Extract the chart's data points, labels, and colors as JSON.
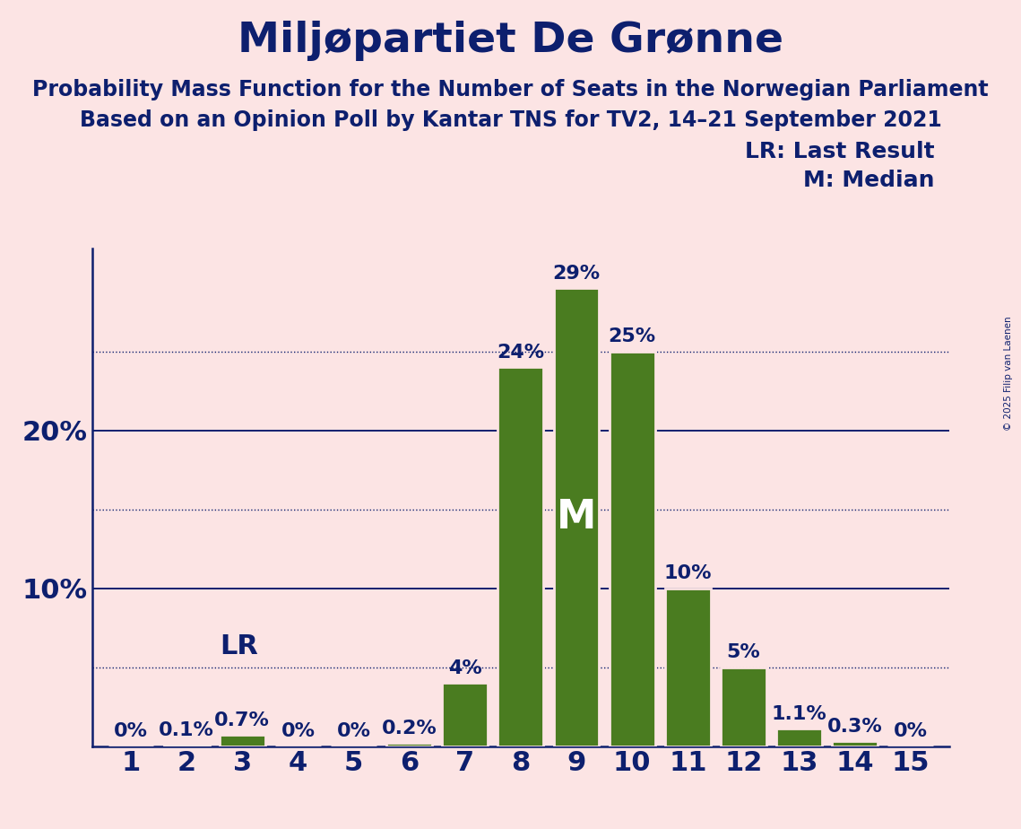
{
  "title": "Miljøpartiet De Grønne",
  "subtitle1": "Probability Mass Function for the Number of Seats in the Norwegian Parliament",
  "subtitle2": "Based on an Opinion Poll by Kantar TNS for TV2, 14–21 September 2021",
  "copyright": "© 2025 Filip van Laenen",
  "seats": [
    1,
    2,
    3,
    4,
    5,
    6,
    7,
    8,
    9,
    10,
    11,
    12,
    13,
    14,
    15
  ],
  "probabilities": [
    0.0,
    0.1,
    0.7,
    0.0,
    0.0,
    0.2,
    4.0,
    24.0,
    29.0,
    25.0,
    10.0,
    5.0,
    1.1,
    0.3,
    0.0
  ],
  "bar_color": "#4a7c20",
  "bar_edge_color": "#fce4e4",
  "background_color": "#fce4e4",
  "text_color": "#0d1f6e",
  "title_fontsize": 34,
  "subtitle_fontsize": 17,
  "tick_fontsize": 22,
  "annotation_fontsize": 16,
  "legend_fontsize": 18,
  "median_seat": 9,
  "lr_seat": 3,
  "lr_label": "LR",
  "median_label": "M",
  "ylim_max": 31.5,
  "solid_lines": [
    10,
    20
  ],
  "dotted_lines": [
    5,
    15,
    25
  ],
  "legend_text1": "LR: Last Result",
  "legend_text2": "M: Median"
}
